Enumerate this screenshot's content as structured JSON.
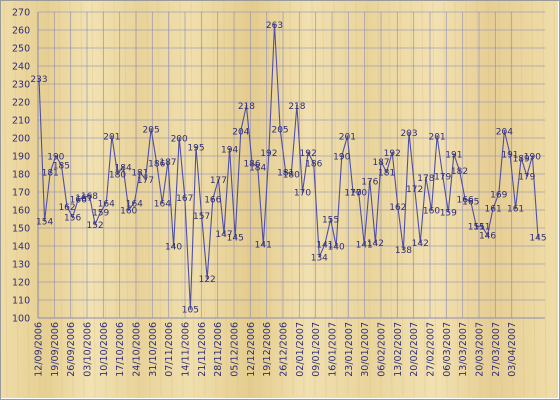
{
  "chart_data": {
    "type": "line",
    "title": "",
    "xlabel": "",
    "ylabel": "",
    "ylim": [
      100,
      270
    ],
    "y_ticks": [
      100,
      110,
      120,
      130,
      140,
      150,
      160,
      170,
      180,
      190,
      200,
      210,
      220,
      230,
      240,
      250,
      260,
      270
    ],
    "grid": true,
    "legend": "none",
    "x_tick_labels": [
      "12/09/2006",
      "19/09/2006",
      "26/09/2006",
      "03/10/2006",
      "10/10/2006",
      "17/10/2006",
      "24/10/2006",
      "31/10/2006",
      "07/11/2006",
      "14/11/2006",
      "21/11/2006",
      "28/11/2006",
      "05/12/2006",
      "12/12/2006",
      "19/12/2006",
      "26/12/2006",
      "02/01/2007",
      "09/01/2007",
      "16/01/2007",
      "23/01/2007",
      "30/01/2007",
      "06/02/2007",
      "13/02/2007",
      "20/02/2007",
      "27/02/2007",
      "06/03/2007",
      "13/03/2007",
      "20/03/2007",
      "27/03/2007",
      "03/04/2007"
    ],
    "series": [
      {
        "values": [
          233,
          154,
          181,
          190,
          185,
          162,
          156,
          166,
          167,
          168,
          152,
          159,
          164,
          201,
          180,
          184,
          160,
          164,
          181,
          177,
          205,
          186,
          164,
          187,
          140,
          200,
          167,
          105,
          195,
          157,
          122,
          166,
          177,
          147,
          194,
          145,
          204,
          218,
          186,
          184,
          141,
          192,
          263,
          205,
          181,
          180,
          218,
          170,
          192,
          186,
          134,
          141,
          155,
          140,
          190,
          201,
          170,
          170,
          141,
          176,
          142,
          187,
          181,
          192,
          162,
          138,
          203,
          172,
          142,
          178,
          160,
          201,
          179,
          159,
          191,
          182,
          166,
          165,
          151,
          151,
          146,
          161,
          169,
          204,
          191,
          161,
          189,
          179,
          190,
          145
        ],
        "data_labels": [
          "233",
          "154",
          "181",
          "190",
          "185",
          "162",
          "156",
          "166",
          "167",
          "168",
          "152",
          "159",
          "164",
          "201",
          "180",
          "184",
          "160",
          "164",
          "181",
          "177",
          "205",
          "186",
          "164",
          "187",
          "140",
          "200",
          "167",
          "105",
          "195",
          "157",
          "122",
          "166",
          "177",
          "147",
          "194",
          "145",
          "204",
          "218",
          "186",
          "184",
          "141",
          "192",
          "263",
          "205",
          "181",
          "180",
          "218",
          "170",
          "192",
          "186",
          "134",
          "141",
          "155",
          "140",
          "190",
          "201",
          "170",
          "170",
          "141",
          "176",
          "142",
          "187",
          "181",
          "192",
          "162",
          "138",
          "203",
          "172",
          "142",
          "178",
          "160",
          "201",
          "179",
          "159",
          "191",
          "182",
          "166",
          "165",
          "151",
          "151",
          "146",
          "161",
          "169",
          "204",
          "191",
          "161",
          "189",
          "179",
          "190",
          "145"
        ]
      }
    ]
  },
  "colors": {
    "line": "#4f4fa8",
    "text": "#2e2e7a",
    "grid": "#8b8bb8",
    "background_base": "#ecd9a4"
  }
}
